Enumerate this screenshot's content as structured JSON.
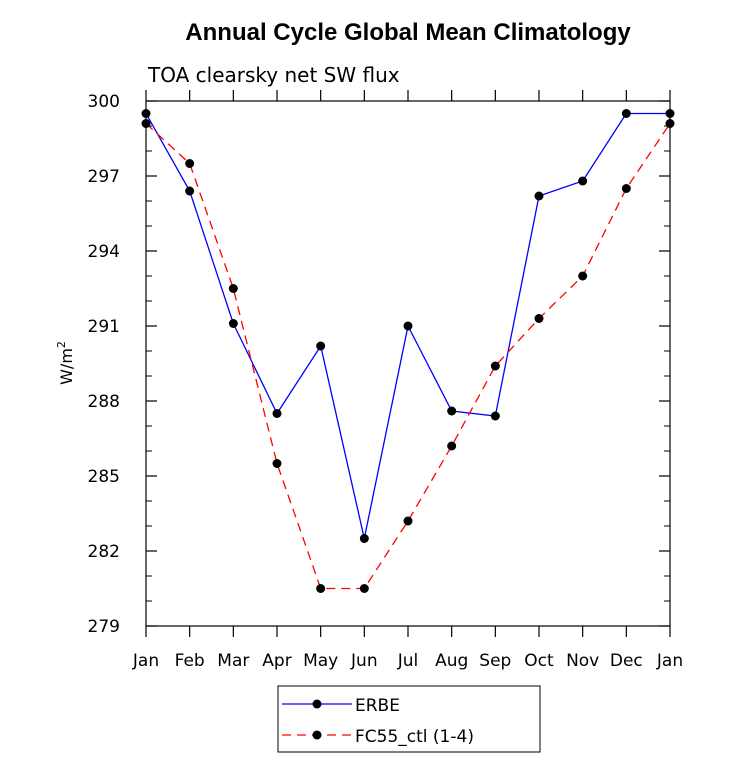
{
  "chart_data": {
    "type": "line",
    "title": "Annual Cycle Global Mean Climatology",
    "subtitle": "TOA clearsky net SW flux",
    "ylabel": "W/m",
    "ylabel_superscript": "2",
    "xlabel": "",
    "categories": [
      "Jan",
      "Feb",
      "Mar",
      "Apr",
      "May",
      "Jun",
      "Jul",
      "Aug",
      "Sep",
      "Oct",
      "Nov",
      "Dec",
      "Jan"
    ],
    "ylim": [
      279,
      300
    ],
    "yticks": [
      279,
      282,
      285,
      288,
      291,
      294,
      297,
      300
    ],
    "ytick_labels": [
      "279",
      "282",
      "285",
      "288",
      "291",
      "294",
      "297",
      "300"
    ],
    "series": [
      {
        "name": "ERBE",
        "color": "#0000ff",
        "dash": "solid",
        "values": [
          299.5,
          296.4,
          291.1,
          287.5,
          290.2,
          282.5,
          291.0,
          287.6,
          287.4,
          296.2,
          296.8,
          299.5,
          299.5
        ]
      },
      {
        "name": "FC55_ctl (1-4)",
        "color": "#ff0000",
        "dash": "dashed",
        "values": [
          299.1,
          297.5,
          292.5,
          285.5,
          280.5,
          280.5,
          283.2,
          286.2,
          289.4,
          291.3,
          293.0,
          296.5,
          299.1
        ]
      }
    ],
    "grid": false,
    "legend_position": "bottom-center",
    "marker": "filled-circle",
    "marker_color": "#000000"
  }
}
